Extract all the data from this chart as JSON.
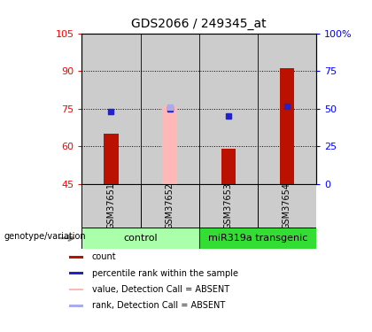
{
  "title": "GDS2066 / 249345_at",
  "samples": [
    "GSM37651",
    "GSM37652",
    "GSM37653",
    "GSM37654"
  ],
  "group_labels": [
    "control",
    "miR319a transgenic"
  ],
  "group_colors": [
    "#AAFFAA",
    "#33DD33"
  ],
  "red_bar_values": [
    65,
    null,
    59,
    91
  ],
  "pink_bar_values": [
    null,
    76,
    null,
    null
  ],
  "blue_dot_values": [
    74,
    75,
    72,
    76
  ],
  "pink_dot_values": [
    null,
    75.5,
    null,
    null
  ],
  "ylim_left": [
    45,
    105
  ],
  "ylim_right": [
    0,
    100
  ],
  "yticks_left": [
    45,
    60,
    75,
    90,
    105
  ],
  "yticks_right": [
    0,
    25,
    50,
    75,
    100
  ],
  "ytick_labels_left": [
    "45",
    "60",
    "75",
    "90",
    "105"
  ],
  "ytick_labels_right": [
    "0",
    "25",
    "50",
    "75",
    "100%"
  ],
  "grid_lines": [
    60,
    75,
    90
  ],
  "bar_width": 0.25,
  "red_color": "#BB1100",
  "pink_color": "#FFB8B8",
  "blue_color": "#2222CC",
  "light_blue_color": "#AAAAEE",
  "gray_color": "#CCCCCC",
  "legend_items": [
    {
      "label": "count",
      "color": "#BB1100"
    },
    {
      "label": "percentile rank within the sample",
      "color": "#2222CC"
    },
    {
      "label": "value, Detection Call = ABSENT",
      "color": "#FFB8B8"
    },
    {
      "label": "rank, Detection Call = ABSENT",
      "color": "#AAAAEE"
    }
  ]
}
